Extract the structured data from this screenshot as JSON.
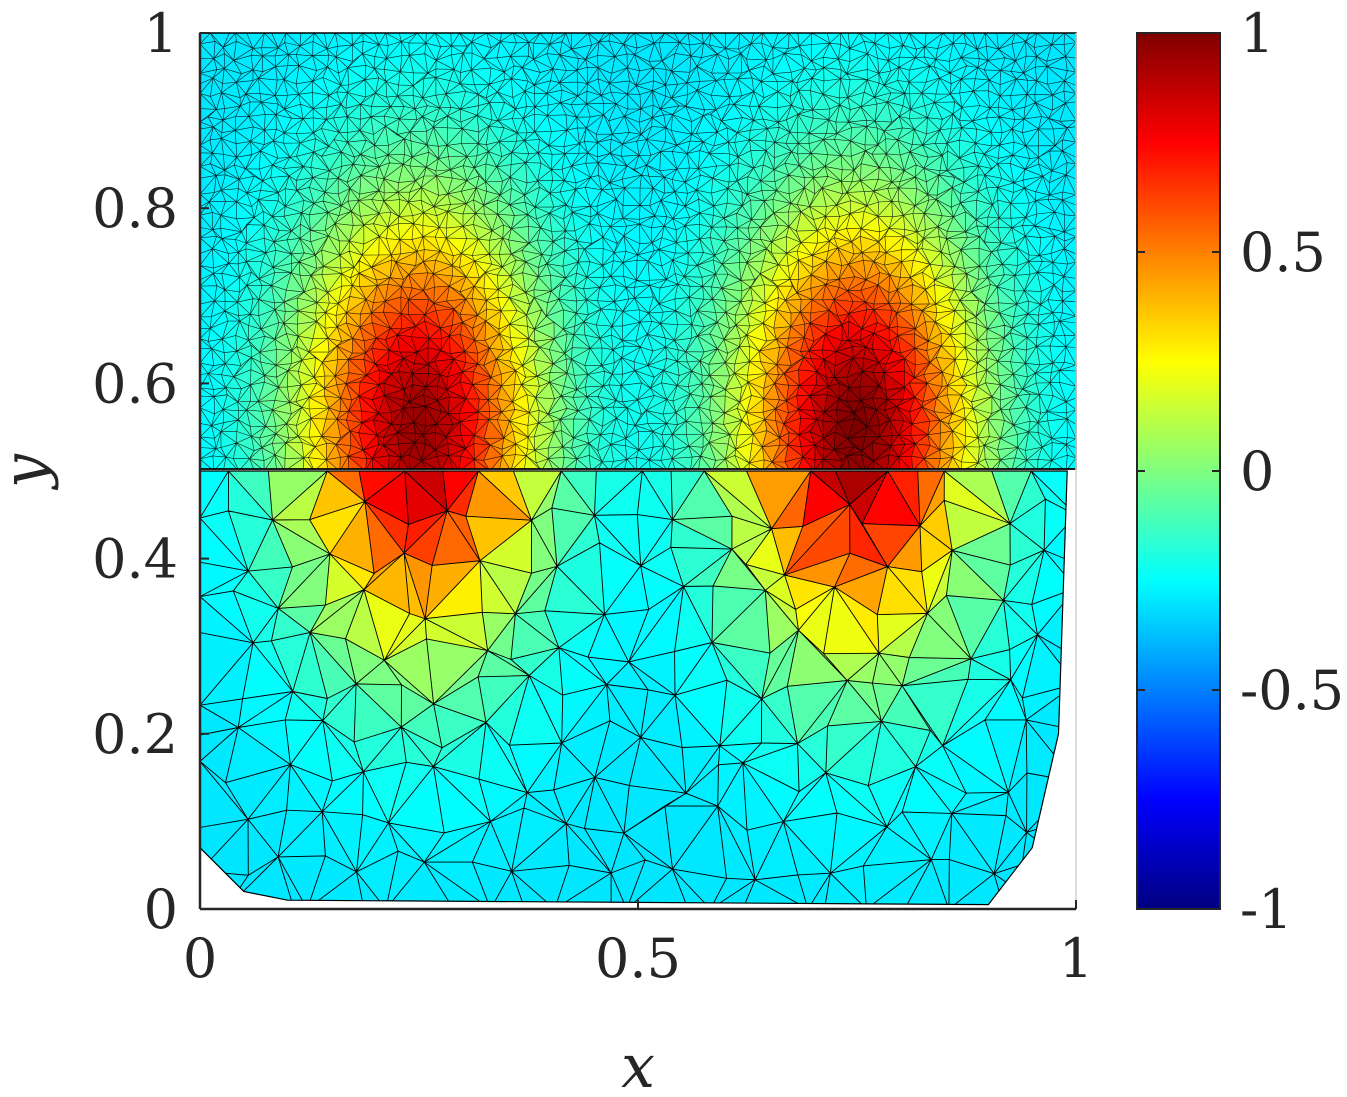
{
  "chart_data": {
    "type": "heatmap",
    "title": "",
    "xlabel": "x",
    "ylabel": "y",
    "xlim": [
      0,
      1
    ],
    "ylim": [
      0,
      1
    ],
    "x_ticks": [
      0,
      0.5,
      1
    ],
    "x_tick_labels": [
      "0",
      "0.5",
      "1"
    ],
    "y_ticks": [
      0,
      0.2,
      0.4,
      0.6,
      0.8,
      1
    ],
    "y_tick_labels": [
      "0",
      "0.2",
      "0.4",
      "0.6",
      "0.8",
      "1"
    ],
    "colorbar": {
      "colormap": "jet",
      "range": [
        -1,
        1
      ],
      "ticks": [
        -1,
        -0.5,
        0,
        0.5,
        1
      ],
      "tick_labels": [
        "-1",
        "-0.5",
        "0",
        "0.5",
        "1"
      ]
    },
    "mesh": {
      "fine_region_y": [
        0.5,
        1
      ],
      "coarse_region_y": [
        0,
        0.5
      ],
      "interface_y": 0.5,
      "coarse_boundary": [
        [
          0,
          0.07
        ],
        [
          0.05,
          0.02
        ],
        [
          0.1,
          0.01
        ],
        [
          0.9,
          0.005
        ],
        [
          0.95,
          0.07
        ],
        [
          0.98,
          0.2
        ],
        [
          0.99,
          0.5
        ]
      ]
    },
    "field": {
      "background_value": -0.3,
      "peaks": [
        {
          "x": 0.25,
          "y": 0.55,
          "value": 0.95
        },
        {
          "x": 0.75,
          "y": 0.55,
          "value": 1.0
        }
      ]
    },
    "grid": false,
    "legend": "none"
  }
}
